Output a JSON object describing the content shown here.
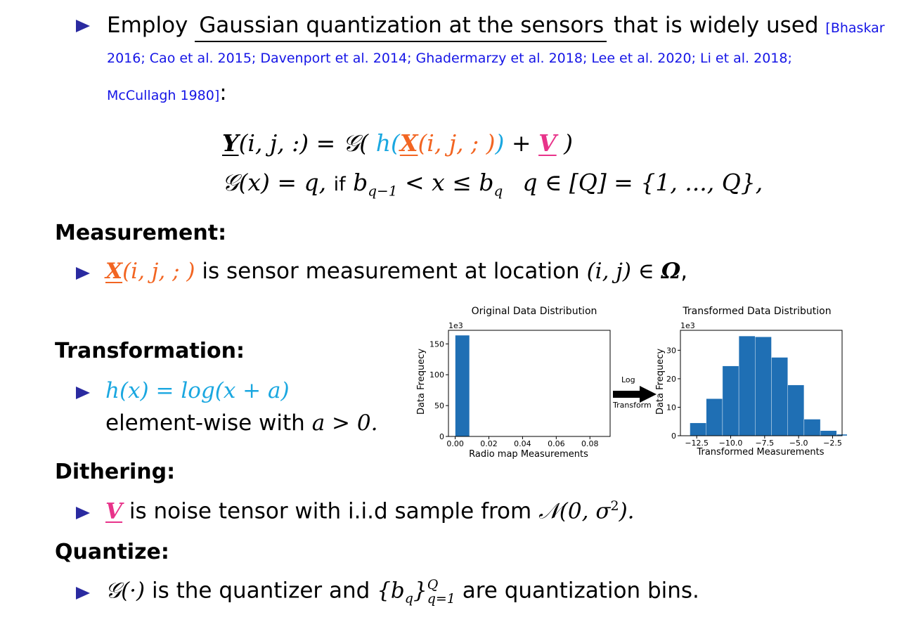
{
  "intro": {
    "prefix": "Employ",
    "underlined": "Gaussian quantization at the sensors",
    "suffix": "that is widely used",
    "citation_line1": "[Bhaskar",
    "citation_line2": "2016; Cao et al. 2015; Davenport et al. 2014; Ghadermarzy et al. 2018; Lee et al. 2020; Li et al. 2018;",
    "citation_line3": "McCullagh 1980]",
    "colon": ":"
  },
  "equation": {
    "line1": {
      "Y": "Y",
      "args1": "(i, j, :) = ",
      "G": "𝒢(",
      "h": "h(",
      "X": "X",
      "args2": "(i, j, ; )",
      "hclose": ")",
      "plus": " + ",
      "V": "V",
      "close": " )"
    },
    "line2": {
      "lhs": "𝒢(x) = q,",
      "if": "if",
      "cond": "b",
      "sub1": "q−1",
      "cond2": " < x ≤ b",
      "sub2": "q",
      "set": "q ∈ [Q] = {1, ..., Q},"
    }
  },
  "sections": {
    "measurement": {
      "heading": "Measurement:",
      "X": "X",
      "args": "(i, j, ; )",
      "text": "is sensor measurement at location",
      "loc": "(i, j) ∈ ",
      "omega": "Ω",
      "comma": ","
    },
    "transformation": {
      "heading": "Transformation:",
      "formula": "h(x) = log(x + a)",
      "text": "element-wise with",
      "cond": "a > 0."
    },
    "dithering": {
      "heading": "Dithering:",
      "V": "V",
      "text": "is noise tensor with i.i.d sample from",
      "dist": "𝒩(0, σ",
      "sup": "2",
      "close": ")."
    },
    "quantize": {
      "heading": "Quantize:",
      "G": "𝒢(·)",
      "text1": "is the quantizer and",
      "set": "{b",
      "sub": "q",
      "close": "}",
      "supQ": "Q",
      "subq": "q=1",
      "text2": "are quantization bins."
    }
  },
  "arrow": {
    "line1": "Log",
    "line2": "Transform"
  },
  "colors": {
    "bullet": "#2a2aa0",
    "citation": "#1515e6",
    "X": "#f26522",
    "h": "#1aa7e0",
    "V": "#e8338a",
    "bar": "#1f6fb4"
  },
  "chart_data": [
    {
      "type": "bar",
      "title": "Original Data Distribution",
      "xlabel": "Radio map Measurements",
      "ylabel": "Data Frequecy",
      "multiplier": "1e3",
      "xticks": [
        "0.00",
        "0.02",
        "0.04",
        "0.06",
        "0.08"
      ],
      "yticks": [
        "0",
        "50",
        "100",
        "150"
      ],
      "xlim": [
        -0.004,
        0.092
      ],
      "ylim": [
        0,
        172
      ],
      "bins": [
        {
          "x0": 0.0,
          "x1": 0.0085,
          "value": 164
        },
        {
          "x0": 0.0085,
          "x1": 0.017,
          "value": 0.3
        },
        {
          "x0": 0.017,
          "x1": 0.0255,
          "value": 0.1
        },
        {
          "x0": 0.0255,
          "x1": 0.034,
          "value": 0.05
        },
        {
          "x0": 0.034,
          "x1": 0.0425,
          "value": 0.03
        },
        {
          "x0": 0.0425,
          "x1": 0.051,
          "value": 0.02
        },
        {
          "x0": 0.051,
          "x1": 0.0595,
          "value": 0.01
        },
        {
          "x0": 0.0595,
          "x1": 0.068,
          "value": 0.01
        },
        {
          "x0": 0.068,
          "x1": 0.0765,
          "value": 0.01
        },
        {
          "x0": 0.0765,
          "x1": 0.085,
          "value": 0.01
        }
      ]
    },
    {
      "type": "bar",
      "title": "Transformed Data Distribution",
      "xlabel": "Transformed Measurements",
      "ylabel": "Data Frequecy",
      "multiplier": "1e3",
      "xticks": [
        "−12.5",
        "−10.0",
        "−7.5",
        "−5.0",
        "−2.5"
      ],
      "xtick_values": [
        -12.5,
        -10.0,
        -7.5,
        -5.0,
        -2.5
      ],
      "yticks": [
        "0",
        "10",
        "20",
        "30"
      ],
      "ytick_values": [
        0,
        10,
        20,
        30
      ],
      "xlim": [
        -13.7,
        -1.8
      ],
      "ylim": [
        0,
        37
      ],
      "bins": [
        {
          "x0": -13.0,
          "x1": -11.8,
          "value": 4.5
        },
        {
          "x0": -11.8,
          "x1": -10.6,
          "value": 13
        },
        {
          "x0": -10.6,
          "x1": -9.4,
          "value": 24.5
        },
        {
          "x0": -9.4,
          "x1": -8.2,
          "value": 35
        },
        {
          "x0": -8.2,
          "x1": -7.0,
          "value": 34.7
        },
        {
          "x0": -7.0,
          "x1": -5.8,
          "value": 27.5
        },
        {
          "x0": -5.8,
          "x1": -4.6,
          "value": 17.8
        },
        {
          "x0": -4.6,
          "x1": -3.4,
          "value": 5.8
        },
        {
          "x0": -3.4,
          "x1": -2.2,
          "value": 1.8
        },
        {
          "x0": -2.2,
          "x1": -1.0,
          "value": 0.5
        }
      ]
    }
  ]
}
